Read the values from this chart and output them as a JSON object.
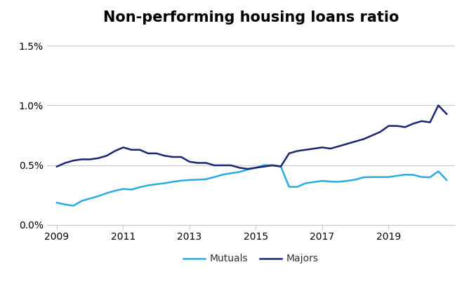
{
  "title": "Non-performing housing loans ratio",
  "title_fontsize": 15,
  "background_color": "#ffffff",
  "ylim": [
    0.0,
    0.016
  ],
  "yticks": [
    0.0,
    0.005,
    0.01,
    0.015
  ],
  "ytick_labels": [
    "0.0%",
    "0.5%",
    "1.0%",
    "1.5%"
  ],
  "xlim": [
    2008.7,
    2021.0
  ],
  "xticks": [
    2009,
    2011,
    2013,
    2015,
    2017,
    2019
  ],
  "mutuals_color": "#29ABE2",
  "majors_color": "#1B2472",
  "legend_labels": [
    "Mutuals",
    "Majors"
  ],
  "grid_color": "#c8c8c8",
  "mutuals": {
    "x": [
      2009.0,
      2009.25,
      2009.5,
      2009.75,
      2010.0,
      2010.25,
      2010.5,
      2010.75,
      2011.0,
      2011.25,
      2011.5,
      2011.75,
      2012.0,
      2012.25,
      2012.5,
      2012.75,
      2013.0,
      2013.25,
      2013.5,
      2013.75,
      2014.0,
      2014.25,
      2014.5,
      2014.75,
      2015.0,
      2015.25,
      2015.5,
      2015.75,
      2016.0,
      2016.25,
      2016.5,
      2016.75,
      2017.0,
      2017.25,
      2017.5,
      2017.75,
      2018.0,
      2018.25,
      2018.5,
      2018.75,
      2019.0,
      2019.25,
      2019.5,
      2019.75,
      2020.0,
      2020.25,
      2020.5,
      2020.75
    ],
    "y": [
      0.00185,
      0.0017,
      0.0016,
      0.002,
      0.0022,
      0.0024,
      0.00265,
      0.00285,
      0.003,
      0.00295,
      0.00315,
      0.0033,
      0.0034,
      0.00348,
      0.0036,
      0.0037,
      0.00375,
      0.00378,
      0.00382,
      0.004,
      0.0042,
      0.00432,
      0.00442,
      0.00462,
      0.00478,
      0.005,
      0.00498,
      0.0049,
      0.00318,
      0.00318,
      0.00348,
      0.00358,
      0.00368,
      0.00362,
      0.0036,
      0.00368,
      0.00378,
      0.00398,
      0.004,
      0.004,
      0.004,
      0.0041,
      0.0042,
      0.00418,
      0.004,
      0.00398,
      0.00448,
      0.00375
    ]
  },
  "majors": {
    "x": [
      2009.0,
      2009.25,
      2009.5,
      2009.75,
      2010.0,
      2010.25,
      2010.5,
      2010.75,
      2011.0,
      2011.25,
      2011.5,
      2011.75,
      2012.0,
      2012.25,
      2012.5,
      2012.75,
      2013.0,
      2013.25,
      2013.5,
      2013.75,
      2014.0,
      2014.25,
      2014.5,
      2014.75,
      2015.0,
      2015.25,
      2015.5,
      2015.75,
      2016.0,
      2016.25,
      2016.5,
      2016.75,
      2017.0,
      2017.25,
      2017.5,
      2017.75,
      2018.0,
      2018.25,
      2018.5,
      2018.75,
      2019.0,
      2019.25,
      2019.5,
      2019.75,
      2020.0,
      2020.25,
      2020.5,
      2020.75
    ],
    "y": [
      0.00488,
      0.00518,
      0.00538,
      0.00548,
      0.00548,
      0.00558,
      0.00578,
      0.00618,
      0.00648,
      0.00628,
      0.00628,
      0.00598,
      0.00598,
      0.00578,
      0.00568,
      0.00568,
      0.00528,
      0.00518,
      0.00518,
      0.00498,
      0.00498,
      0.00498,
      0.00478,
      0.00468,
      0.00478,
      0.00488,
      0.00498,
      0.00488,
      0.00598,
      0.00618,
      0.00628,
      0.00638,
      0.00648,
      0.00638,
      0.00658,
      0.00678,
      0.00698,
      0.00718,
      0.00748,
      0.00778,
      0.00828,
      0.00828,
      0.00818,
      0.00848,
      0.00868,
      0.00858,
      0.01,
      0.00928
    ]
  }
}
